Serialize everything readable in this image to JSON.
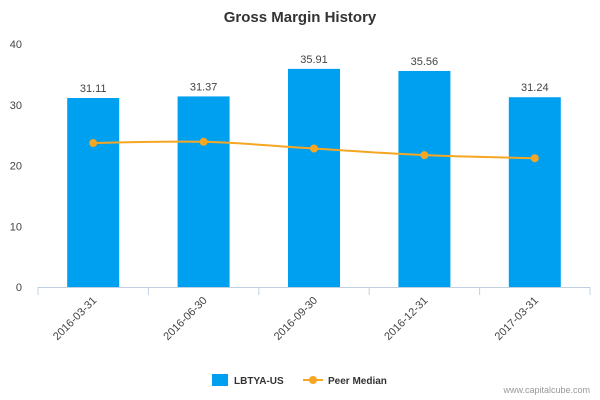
{
  "chart_data": {
    "type": "bar",
    "title": "Gross Margin History",
    "categories": [
      "2016-03-31",
      "2016-06-30",
      "2016-09-30",
      "2016-12-31",
      "2017-03-31"
    ],
    "series": [
      {
        "name": "LBTYA-US",
        "kind": "bar",
        "color": "#00a0f0",
        "values": [
          31.11,
          31.37,
          35.91,
          35.56,
          31.24
        ],
        "labels": [
          "31.11",
          "31.37",
          "35.91",
          "35.56",
          "31.24"
        ]
      },
      {
        "name": "Peer Median",
        "kind": "line",
        "color": "#f5a623",
        "values": [
          23.7,
          23.9,
          22.8,
          21.7,
          21.2
        ]
      }
    ],
    "ylim": [
      0,
      40
    ],
    "yticks": [
      "0",
      "10",
      "20",
      "30",
      "40"
    ],
    "xlabel": "",
    "ylabel": "",
    "grid": false,
    "legend": "bottom-center"
  },
  "credit": "www.capitalcube.com"
}
